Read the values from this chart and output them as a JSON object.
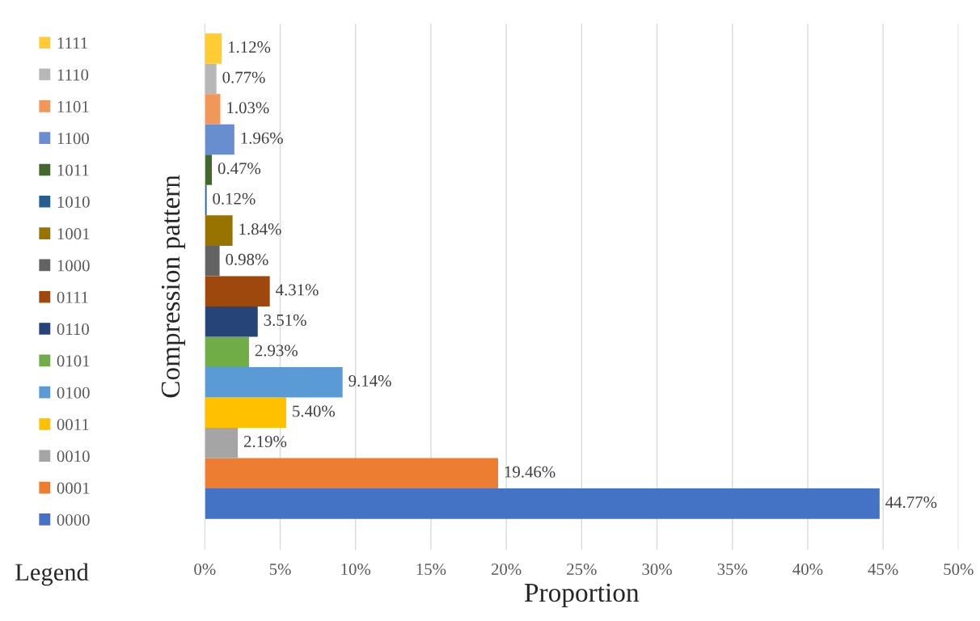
{
  "chart_data": {
    "type": "bar",
    "orientation": "horizontal",
    "categories": [
      null
    ],
    "xlabel": "Proportion",
    "ylabel": "Compression pattern",
    "xlim": [
      0,
      50
    ],
    "xticks": [
      {
        "value": 0,
        "label": "0%"
      },
      {
        "value": 5,
        "label": "5%"
      },
      {
        "value": 10,
        "label": "10%"
      },
      {
        "value": 15,
        "label": "15%"
      },
      {
        "value": 20,
        "label": "20%"
      },
      {
        "value": 25,
        "label": "25%"
      },
      {
        "value": 30,
        "label": "30%"
      },
      {
        "value": 35,
        "label": "35%"
      },
      {
        "value": 40,
        "label": "40%"
      },
      {
        "value": 45,
        "label": "45%"
      },
      {
        "value": 50,
        "label": "50%"
      }
    ],
    "grid": "x",
    "legend": "left",
    "annotations": [
      "Legend"
    ],
    "series": [
      {
        "name": "0000",
        "color": "#4472c4",
        "values": [
          44.77
        ],
        "value_labels": [
          "44.77%"
        ]
      },
      {
        "name": "0001",
        "color": "#ed7d31",
        "values": [
          19.46
        ],
        "value_labels": [
          "19.46%"
        ]
      },
      {
        "name": "0010",
        "color": "#a5a5a5",
        "values": [
          2.19
        ],
        "value_labels": [
          "2.19%"
        ]
      },
      {
        "name": "0011",
        "color": "#ffc000",
        "values": [
          5.4
        ],
        "value_labels": [
          "5.40%"
        ]
      },
      {
        "name": "0100",
        "color": "#5b9bd5",
        "values": [
          9.14
        ],
        "value_labels": [
          "9.14%"
        ]
      },
      {
        "name": "0101",
        "color": "#70ad47",
        "values": [
          2.93
        ],
        "value_labels": [
          "2.93%"
        ]
      },
      {
        "name": "0110",
        "color": "#264478",
        "values": [
          3.51
        ],
        "value_labels": [
          "3.51%"
        ]
      },
      {
        "name": "0111",
        "color": "#9e480e",
        "values": [
          4.31
        ],
        "value_labels": [
          "4.31%"
        ]
      },
      {
        "name": "1000",
        "color": "#636363",
        "values": [
          0.98
        ],
        "value_labels": [
          "0.98%"
        ]
      },
      {
        "name": "1001",
        "color": "#997300",
        "values": [
          1.84
        ],
        "value_labels": [
          "1.84%"
        ]
      },
      {
        "name": "1010",
        "color": "#255e91",
        "values": [
          0.12
        ],
        "value_labels": [
          "0.12%"
        ]
      },
      {
        "name": "1011",
        "color": "#43682b",
        "values": [
          0.47
        ],
        "value_labels": [
          "0.47%"
        ]
      },
      {
        "name": "1100",
        "color": "#698ed0",
        "values": [
          1.96
        ],
        "value_labels": [
          "1.96%"
        ]
      },
      {
        "name": "1101",
        "color": "#f1975a",
        "values": [
          1.03
        ],
        "value_labels": [
          "1.03%"
        ]
      },
      {
        "name": "1110",
        "color": "#b7b7b7",
        "values": [
          0.77
        ],
        "value_labels": [
          "0.77%"
        ]
      },
      {
        "name": "1111",
        "color": "#ffcd33",
        "values": [
          1.12
        ],
        "value_labels": [
          "1.12%"
        ]
      }
    ]
  }
}
